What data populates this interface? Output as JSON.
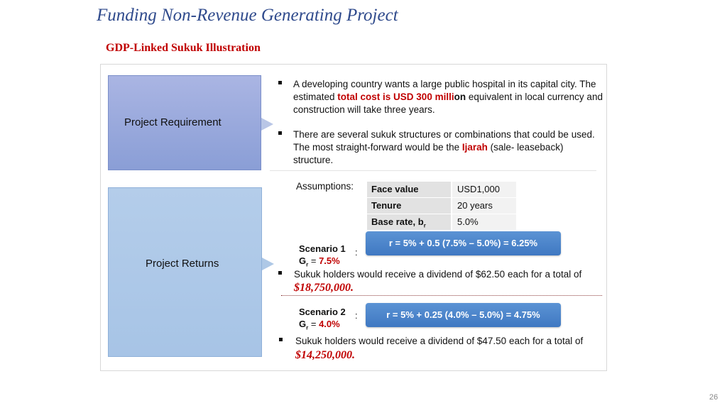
{
  "title": "Funding Non-Revenue Generating Project",
  "subtitle": "GDP-Linked Sukuk Illustration",
  "requirement": {
    "label": "Project Requirement",
    "bullet1": {
      "pre": "A developing country wants a large public hospital in its capital city. The estimated ",
      "highlight": "total cost is USD 300 milli",
      "bold": "on",
      "post": " equivalent in local currency and construction will take three years."
    },
    "bullet2": {
      "pre": "There are several sukuk structures or combinations that could be used. The most straight-forward would be the ",
      "highlight": "Ijarah",
      "post": " (sale- leaseback) structure."
    }
  },
  "returns": {
    "label": "Project Returns",
    "assumptions_label": "Assumptions:",
    "assumptions": [
      {
        "key": "Face value",
        "value": "USD1,000"
      },
      {
        "key": "Tenure",
        "value": "20 years"
      },
      {
        "key": "Base rate, b",
        "key_sub": "r",
        "value": "5.0%"
      }
    ],
    "scenario1": {
      "title": "Scenario 1",
      "g_label": "G",
      "g_sub": "r",
      "g_eq": " = ",
      "g_value": "7.5%",
      "colon": ":",
      "formula": "r = 5% + 0.5 (7.5% – 5.0%) = 6.25%",
      "text": "Sukuk holders would receive a dividend of $62.50 each for a total of",
      "amount": "$18,750,000."
    },
    "scenario2": {
      "title": "Scenario 2",
      "g_label": "G",
      "g_sub": "r",
      "g_eq": " = ",
      "g_value": "4.0%",
      "colon": ":",
      "formula": "r = 5% + 0.25 (4.0% – 5.0%) = 4.75%",
      "text": "Sukuk holders would receive a dividend of $47.50 each for a total of",
      "amount": "$14,250,000."
    }
  },
  "page_number": "26",
  "colors": {
    "title": "#2f4a8c",
    "highlight": "#c00000",
    "pill": "#4a84cc"
  }
}
